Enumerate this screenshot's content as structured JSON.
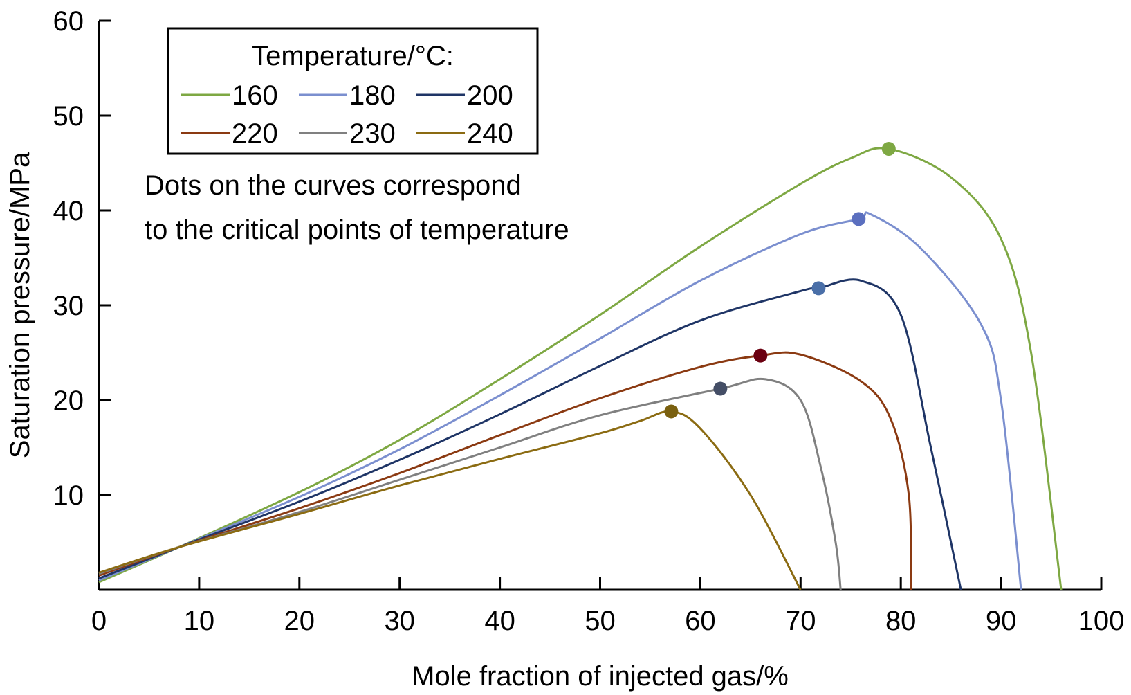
{
  "chart_data": {
    "type": "line",
    "xlabel": "Mole fraction of injected gas/%",
    "ylabel": "Saturation pressure/MPa",
    "xlim": [
      0,
      100
    ],
    "ylim": [
      0,
      60
    ],
    "xticks": [
      0,
      10,
      20,
      30,
      40,
      50,
      60,
      70,
      80,
      90,
      100
    ],
    "yticks": [
      10,
      20,
      30,
      40,
      50,
      60
    ],
    "legend": {
      "title": "Temperature/°C:",
      "placement": "top-left"
    },
    "annotation": [
      "Dots on the curves correspond",
      "to the critical points of temperature"
    ],
    "series": [
      {
        "name": "160",
        "color": "#7ea843",
        "dot_color": "#7ea843",
        "x": [
          0,
          8,
          20,
          30,
          40,
          50,
          60,
          70,
          75,
          78.8,
          85,
          90,
          93,
          96
        ],
        "y": [
          0.8,
          4.5,
          10.3,
          15.8,
          22.2,
          29,
          36.2,
          42.8,
          45.5,
          46.5,
          43.5,
          37,
          25,
          0
        ],
        "critical": [
          78.8,
          46.5
        ]
      },
      {
        "name": "180",
        "color": "#7b8fcf",
        "dot_color": "#5b6fbf",
        "x": [
          0,
          8,
          20,
          30,
          40,
          50,
          60,
          70,
          75.8,
          77,
          82,
          88,
          90,
          92
        ],
        "y": [
          1,
          4.5,
          9.8,
          14.8,
          20.5,
          26.5,
          32.6,
          37.5,
          39.1,
          39.6,
          36,
          28,
          20,
          0
        ],
        "critical": [
          75.8,
          39.1
        ]
      },
      {
        "name": "200",
        "color": "#1f3566",
        "dot_color": "#4a6fa8",
        "x": [
          0,
          8,
          20,
          30,
          40,
          50,
          60,
          70,
          71.8,
          76,
          80,
          83,
          86
        ],
        "y": [
          1.2,
          4.5,
          9.3,
          13.7,
          18.5,
          23.6,
          28.4,
          31.5,
          31.8,
          32.6,
          29,
          15,
          0
        ],
        "critical": [
          71.8,
          31.8
        ]
      },
      {
        "name": "220",
        "color": "#8b3a12",
        "dot_color": "#6b0010",
        "x": [
          0,
          8,
          20,
          30,
          40,
          50,
          60,
          66,
          70,
          76,
          79,
          80.8,
          81
        ],
        "y": [
          1.5,
          4.5,
          8.6,
          12.3,
          16.3,
          20.2,
          23.5,
          24.7,
          24.8,
          22,
          18,
          10,
          0
        ],
        "critical": [
          66.0,
          24.7
        ]
      },
      {
        "name": "230",
        "color": "#808080",
        "dot_color": "#444e66",
        "x": [
          0,
          8,
          20,
          30,
          40,
          50,
          62,
          66.5,
          70,
          72,
          73.5,
          74
        ],
        "y": [
          1.7,
          4.5,
          8.2,
          11.6,
          15,
          18.4,
          21.2,
          22.2,
          20,
          13,
          5,
          0
        ],
        "critical": [
          62.0,
          21.2
        ]
      },
      {
        "name": "240",
        "color": "#8b6b12",
        "dot_color": "#7a6010",
        "x": [
          0,
          8,
          20,
          30,
          40,
          50,
          54,
          57.1,
          60,
          65,
          70
        ],
        "y": [
          1.8,
          4.5,
          8,
          11,
          13.8,
          16.5,
          17.8,
          18.8,
          17,
          10,
          0
        ],
        "critical": [
          57.1,
          18.8
        ]
      }
    ]
  }
}
